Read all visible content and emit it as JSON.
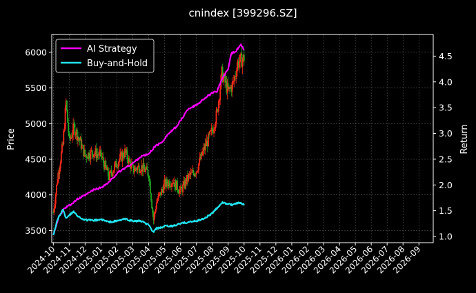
{
  "chart_data": {
    "type": "line",
    "title": "cnindex [399296.SZ]",
    "xlabel": "",
    "ylabel_left": "Price",
    "ylabel_right": "Return",
    "left_ylim": [
      3330,
      6250
    ],
    "right_ylim": [
      0.88,
      4.92
    ],
    "left_yticks": [
      3500,
      4000,
      4500,
      5000,
      5500,
      6000
    ],
    "right_yticks": [
      1.0,
      1.5,
      2.0,
      2.5,
      3.0,
      3.5,
      4.0,
      4.5
    ],
    "x_tick_labels": [
      "2024-10",
      "2024-11",
      "2024-12",
      "2025-01",
      "2025-02",
      "2025-03",
      "2025-04",
      "2025-05",
      "2025-06",
      "2025-07",
      "2025-08",
      "2025-09",
      "2025-10",
      "2025-11",
      "2025-12",
      "2026-01",
      "2026-02",
      "2026-03",
      "2026-04",
      "2026-05",
      "2026-06",
      "2026-07",
      "2026-08",
      "2026-09"
    ],
    "x_range_months": [
      -0.1,
      23.9
    ],
    "grid": true,
    "legend_position": "top-left",
    "colors": {
      "background": "#000000",
      "ai_strategy": "#ff00ff",
      "buy_and_hold": "#22e5f0",
      "candle_up": "#ff2a1a",
      "candle_down": "#22aa22",
      "grid": "#555555"
    },
    "series": [
      {
        "name": "AI Strategy",
        "axis": "right",
        "x_months": [
          0.0,
          0.3,
          0.7,
          1.0,
          1.5,
          2.0,
          2.5,
          3.0,
          3.5,
          4.0,
          4.5,
          5.0,
          5.5,
          6.0,
          6.4,
          6.8,
          7.2,
          7.5,
          7.8,
          8.0,
          8.5,
          9.0,
          9.5,
          10.0,
          10.3,
          10.6,
          11.0,
          11.2,
          11.5,
          11.8,
          12.0
        ],
        "values": [
          1.03,
          1.35,
          1.55,
          1.6,
          1.72,
          1.8,
          1.9,
          1.95,
          2.05,
          2.22,
          2.33,
          2.42,
          2.55,
          2.6,
          2.75,
          2.82,
          2.98,
          3.06,
          3.15,
          3.25,
          3.48,
          3.55,
          3.68,
          3.78,
          3.82,
          4.05,
          4.25,
          4.55,
          4.6,
          4.72,
          4.62
        ]
      },
      {
        "name": "Buy-and-Hold",
        "axis": "right",
        "x_months": [
          0.0,
          0.3,
          0.6,
          0.8,
          1.0,
          1.3,
          1.6,
          2.0,
          2.5,
          3.0,
          3.5,
          4.0,
          4.5,
          5.0,
          5.5,
          6.0,
          6.3,
          6.5,
          6.8,
          7.0,
          7.5,
          8.0,
          8.5,
          9.0,
          9.5,
          10.0,
          10.3,
          10.6,
          11.0,
          11.3,
          11.6,
          12.0
        ],
        "values": [
          1.03,
          1.36,
          1.52,
          1.36,
          1.42,
          1.48,
          1.38,
          1.32,
          1.31,
          1.33,
          1.28,
          1.3,
          1.34,
          1.3,
          1.3,
          1.22,
          1.08,
          1.16,
          1.17,
          1.2,
          1.2,
          1.25,
          1.28,
          1.3,
          1.35,
          1.45,
          1.55,
          1.66,
          1.63,
          1.61,
          1.65,
          1.62
        ]
      },
      {
        "name": "Price",
        "axis": "left",
        "style": "candlestick",
        "x_months": [
          0.0,
          0.3,
          0.6,
          0.8,
          1.0,
          1.3,
          1.6,
          2.0,
          2.5,
          3.0,
          3.5,
          4.0,
          4.5,
          5.0,
          5.5,
          6.0,
          6.3,
          6.5,
          6.8,
          7.0,
          7.5,
          8.0,
          8.5,
          9.0,
          9.5,
          10.0,
          10.3,
          10.6,
          11.0,
          11.3,
          11.6,
          12.0
        ],
        "values": [
          3750,
          4300,
          4700,
          5300,
          4750,
          4950,
          4800,
          4550,
          4600,
          4550,
          4250,
          4450,
          4600,
          4350,
          4400,
          4300,
          3650,
          3900,
          4050,
          4150,
          4200,
          4050,
          4250,
          4350,
          4650,
          4900,
          5150,
          5700,
          5450,
          5550,
          5850,
          5920
        ]
      }
    ]
  },
  "legend": {
    "items": [
      {
        "label": "AI Strategy",
        "color": "#ff00ff"
      },
      {
        "label": "Buy-and-Hold",
        "color": "#22e5f0"
      }
    ]
  }
}
